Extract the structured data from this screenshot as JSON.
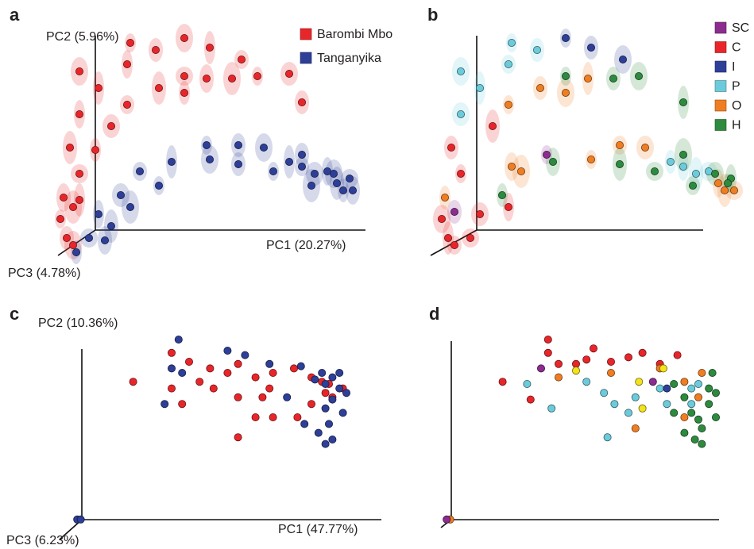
{
  "chart_data": [
    {
      "type": "scatter",
      "panel": "a",
      "x_label": "PC1 (20.27%)",
      "y_label": "PC2 (5.96%)",
      "z_label": "PC3 (4.78%)",
      "xlim": [
        0,
        100
      ],
      "ylim": [
        0,
        100
      ],
      "legend": true,
      "ellipses": true,
      "series": [
        {
          "name": "Barombi Mbo",
          "color": "#e8262a",
          "x": [
            26,
            34,
            43,
            51,
            61,
            76,
            25,
            35,
            43,
            43,
            50,
            58,
            66,
            80,
            10,
            16,
            25,
            20,
            10,
            7,
            10,
            15,
            5,
            8,
            4,
            6,
            8,
            10
          ],
          "y": [
            92,
            89,
            94,
            90,
            85,
            79,
            83,
            73,
            78,
            71,
            77,
            77,
            78,
            67,
            80,
            73,
            66,
            57,
            62,
            48,
            37,
            47,
            27,
            23,
            18,
            10,
            7,
            26
          ]
        },
        {
          "name": "Tanganyika",
          "color": "#2e3f98",
          "x": [
            50,
            60,
            68,
            76,
            80,
            84,
            88,
            91,
            95,
            93,
            96,
            83,
            71,
            60,
            51,
            39,
            29,
            23,
            16,
            20,
            13,
            9,
            18,
            26,
            35,
            80,
            90
          ],
          "y": [
            49,
            49,
            48,
            42,
            40,
            37,
            38,
            33,
            35,
            30,
            30,
            32,
            38,
            41,
            43,
            42,
            38,
            28,
            20,
            15,
            10,
            4,
            9,
            23,
            32,
            45,
            37
          ]
        }
      ]
    },
    {
      "type": "scatter",
      "panel": "b",
      "xlim": [
        0,
        100
      ],
      "ylim": [
        0,
        100
      ],
      "legend": true,
      "ellipses": true,
      "series": [
        {
          "name": "SC",
          "color": "#8b2c8e",
          "x": [
            37,
            8
          ],
          "y": [
            45,
            21
          ]
        },
        {
          "name": "C",
          "color": "#e8262a",
          "x": [
            10,
            7,
            4,
            6,
            8,
            16,
            25,
            20,
            13
          ],
          "y": [
            37,
            48,
            18,
            10,
            7,
            20,
            23,
            57,
            10
          ]
        },
        {
          "name": "I",
          "color": "#2e3f98",
          "x": [
            43,
            51,
            61
          ],
          "y": [
            94,
            90,
            85
          ]
        },
        {
          "name": "P",
          "color": "#6ccbdb",
          "x": [
            26,
            34,
            10,
            16,
            25,
            10,
            80,
            84,
            88,
            76
          ],
          "y": [
            92,
            89,
            80,
            73,
            83,
            62,
            40,
            37,
            38,
            42
          ]
        },
        {
          "name": "O",
          "color": "#ef7d22",
          "x": [
            25,
            35,
            43,
            50,
            60,
            68,
            91,
            93,
            96,
            5,
            26,
            29,
            51
          ],
          "y": [
            66,
            73,
            71,
            77,
            49,
            48,
            33,
            30,
            30,
            27,
            40,
            38,
            43
          ]
        },
        {
          "name": "H",
          "color": "#2d8a3e",
          "x": [
            43,
            58,
            66,
            80,
            83,
            90,
            95,
            60,
            71,
            23,
            39,
            80,
            94
          ],
          "y": [
            78,
            77,
            78,
            67,
            32,
            37,
            35,
            41,
            38,
            28,
            42,
            45,
            33
          ]
        }
      ]
    },
    {
      "type": "scatter",
      "panel": "c",
      "x_label": "PC1 (47.77%)",
      "y_label": "PC2 (10.36%)",
      "z_label": "PC3 (6.23%)",
      "xlim": [
        0,
        100
      ],
      "ylim": [
        0,
        100
      ],
      "legend": false,
      "ellipses": false,
      "series": [
        {
          "color": "#e8262a",
          "x": [
            29,
            40,
            45,
            51,
            56,
            59,
            64,
            69,
            75,
            80,
            83,
            85,
            89,
            40,
            43,
            48,
            52,
            59,
            66,
            69,
            64,
            76,
            80,
            59,
            84,
            86,
            68
          ],
          "y": [
            71,
            84,
            80,
            77,
            75,
            79,
            73,
            75,
            77,
            73,
            71,
            70,
            68,
            68,
            61,
            71,
            68,
            64,
            64,
            55,
            55,
            55,
            61,
            46,
            66,
            64,
            68
          ]
        },
        {
          "color": "#2e3f98",
          "x": [
            42,
            40,
            56,
            61,
            68,
            77,
            81,
            84,
            86,
            88,
            90,
            86,
            84,
            89,
            85,
            82,
            86,
            84,
            78,
            73,
            38,
            43,
            88,
            83,
            13,
            14
          ],
          "y": [
            90,
            77,
            85,
            83,
            79,
            78,
            72,
            70,
            73,
            68,
            66,
            63,
            59,
            57,
            52,
            48,
            45,
            43,
            52,
            64,
            61,
            75,
            75,
            75,
            9,
            9
          ]
        }
      ]
    },
    {
      "type": "scatter",
      "panel": "d",
      "xlim": [
        0,
        100
      ],
      "ylim": [
        0,
        100
      ],
      "legend": false,
      "ellipses": false,
      "series": [
        {
          "color": "#e8262a",
          "x": [
            29,
            42,
            42,
            45,
            50,
            53,
            55,
            60,
            65,
            69,
            74,
            79,
            37
          ],
          "y": [
            71,
            90,
            84,
            79,
            79,
            81,
            86,
            80,
            82,
            84,
            79,
            83,
            63
          ]
        },
        {
          "color": "#ef7d22",
          "x": [
            45,
            60,
            74,
            81,
            86,
            85,
            67,
            81,
            14
          ],
          "y": [
            73,
            75,
            77,
            71,
            75,
            64,
            50,
            55,
            9
          ]
        },
        {
          "color": "#6ccbdb",
          "x": [
            36,
            43,
            53,
            58,
            61,
            65,
            67,
            59,
            74,
            83,
            85,
            83,
            76
          ],
          "y": [
            70,
            59,
            71,
            66,
            61,
            57,
            64,
            46,
            68,
            68,
            70,
            61,
            61
          ]
        },
        {
          "color": "#f2e31b",
          "x": [
            50,
            68,
            75,
            69
          ],
          "y": [
            76,
            71,
            77,
            59
          ]
        },
        {
          "color": "#8b2c8e",
          "x": [
            40,
            72,
            13
          ],
          "y": [
            77,
            71,
            9
          ]
        },
        {
          "color": "#2e3f98",
          "x": [
            76
          ],
          "y": [
            68
          ]
        },
        {
          "color": "#2d8a3e",
          "x": [
            78,
            81,
            83,
            85,
            88,
            90,
            89,
            86,
            84,
            86,
            81,
            78,
            90,
            88
          ],
          "y": [
            70,
            64,
            57,
            54,
            61,
            66,
            75,
            50,
            45,
            43,
            48,
            57,
            55,
            68
          ]
        }
      ]
    }
  ]
}
